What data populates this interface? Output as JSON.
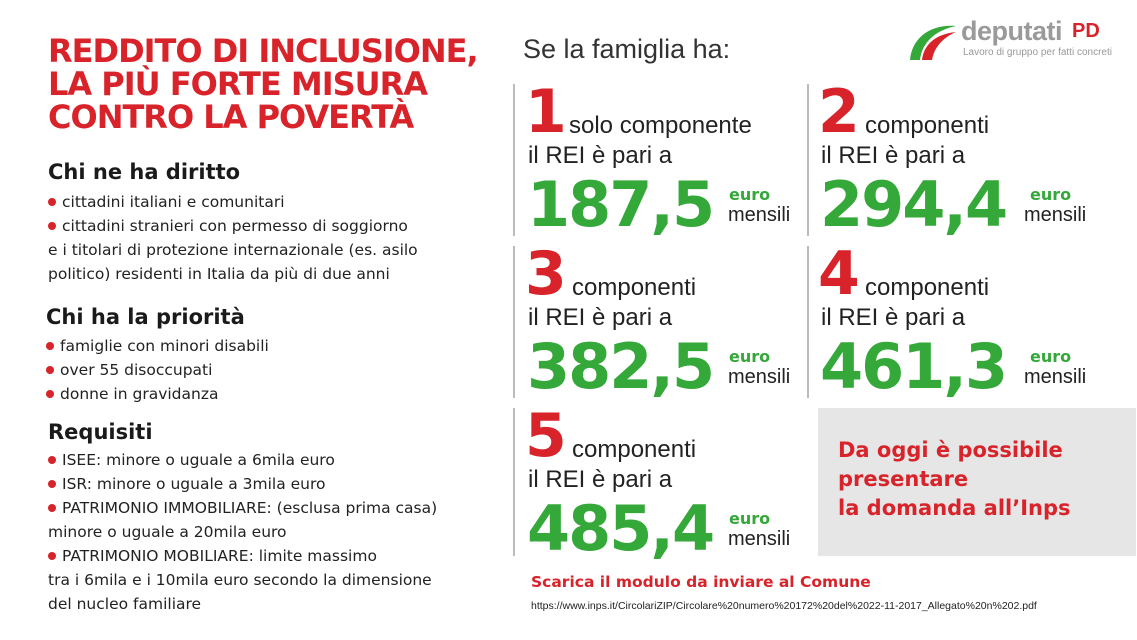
{
  "title": {
    "line1": "REDDITO DI INCLUSIONE,",
    "line2": "LA PIÙ FORTE MISURA",
    "line3": "CONTRO LA POVERTÀ"
  },
  "eligibility": {
    "heading": "Chi ne ha diritto",
    "items": [
      "cittadini italiani e comunitari",
      "cittadini stranieri con permesso di soggiorno",
      "e i titolari di protezione internazionale (es. asilo",
      "politico) residenti in Italia da più di due anni"
    ]
  },
  "priority": {
    "heading": "Chi ha la priorità",
    "items": [
      "famiglie con minori disabili",
      "over 55 disoccupati",
      "donne in gravidanza"
    ]
  },
  "requirements": {
    "heading": "Requisiti",
    "items": [
      "ISEE: minore o uguale a 6mila euro",
      "ISR: minore o uguale a 3mila euro",
      "PATRIMONIO IMMOBILIARE: (esclusa prima casa)",
      "minore o uguale a 20mila euro",
      "PATRIMONIO MOBILIARE: limite massimo",
      "tra i 6mila e i 10mila euro secondo la dimensione",
      "del nucleo familiare"
    ]
  },
  "intro": "Se la famiglia ha:",
  "logo": {
    "word": "deputati",
    "pd": "PD",
    "tagline": "Lavoro di gruppo per fatti concreti"
  },
  "cards": [
    {
      "number": "1",
      "components": "solo componente",
      "rei": "il REI è pari a",
      "amount": "187,5",
      "euro": "euro",
      "mensili": "mensili"
    },
    {
      "number": "2",
      "components": "componenti",
      "rei": "il REI è pari a",
      "amount": "294,4",
      "euro": "euro",
      "mensili": "mensili"
    },
    {
      "number": "3",
      "components": "componenti",
      "rei": "il REI è pari a",
      "amount": "382,5",
      "euro": "euro",
      "mensili": "mensili"
    },
    {
      "number": "4",
      "components": "componenti",
      "rei": "il REI è pari a",
      "amount": "461,3",
      "euro": "euro",
      "mensili": "mensili"
    },
    {
      "number": "5",
      "components": "componenti",
      "rei": "il REI è pari a",
      "amount": "485,4",
      "euro": "euro",
      "mensili": "mensili"
    }
  ],
  "cta": {
    "line1": "Da oggi è possibile",
    "line2": "presentare",
    "line3": "la domanda all’Inps"
  },
  "download": "Scarica il modulo da inviare al Comune",
  "url": "https://www.inps.it/CircolariZIP/Circolare%20numero%20172%20del%2022-11-2017_Allegato%20n%202.pdf",
  "colors": {
    "red": "#d8232a",
    "green": "#35a83a",
    "gray": "#e6e6e6"
  }
}
